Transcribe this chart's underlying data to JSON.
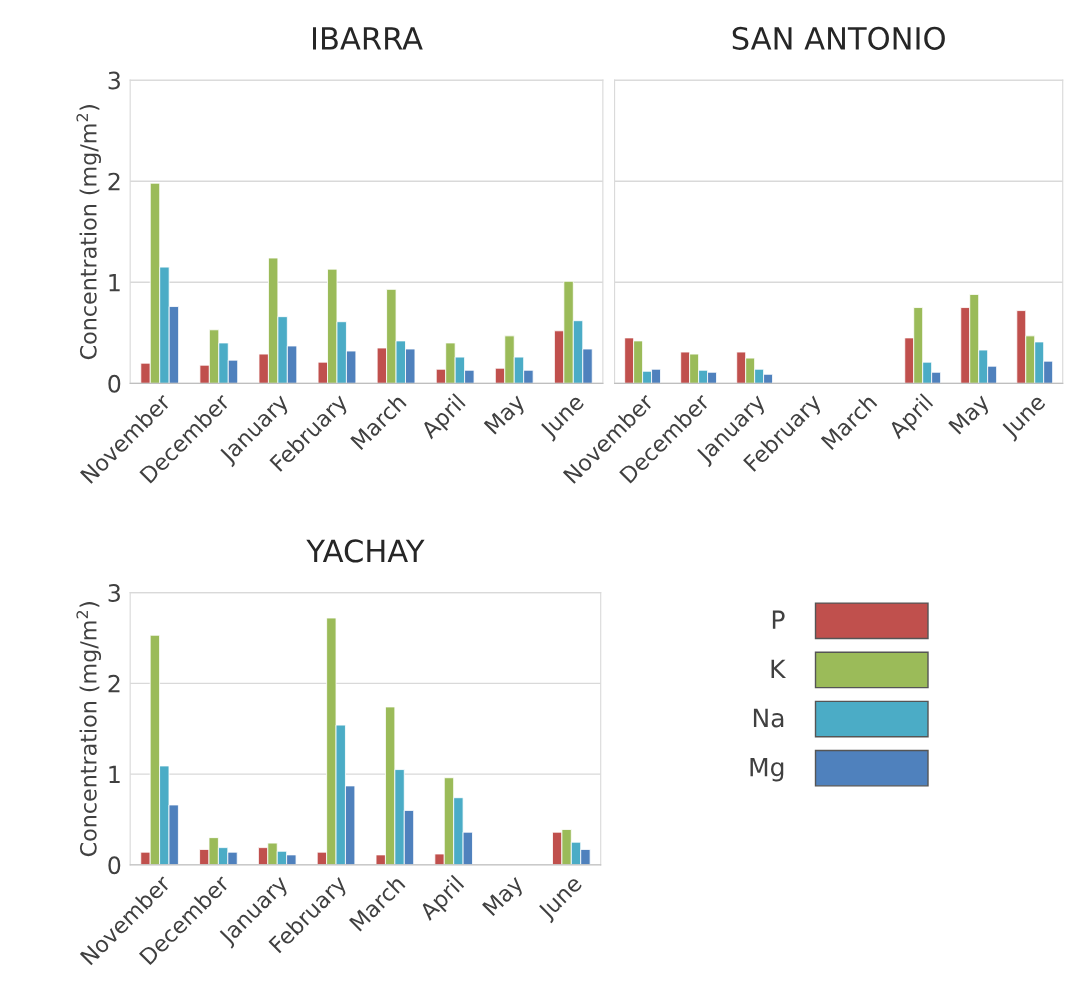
{
  "chart_data": [
    {
      "type": "bar",
      "title": "IBARRA",
      "ylabel": "Concentration (mg/m$^{2}$)",
      "categories": [
        "November",
        "December",
        "January",
        "February",
        "March",
        "April",
        "May",
        "June"
      ],
      "ylim": [
        0,
        3
      ],
      "yticks": [
        0,
        1,
        2,
        3
      ],
      "grid": "y",
      "legend": "bottom right",
      "series": [
        {
          "name": "P",
          "color": "#c0504d",
          "values": [
            0.2,
            0.18,
            0.29,
            0.21,
            0.35,
            0.14,
            0.15,
            0.52
          ]
        },
        {
          "name": "K",
          "color": "#9bbb59",
          "values": [
            1.98,
            0.53,
            1.24,
            1.13,
            0.93,
            0.4,
            0.47,
            1.01
          ]
        },
        {
          "name": "Na",
          "color": "#4bacc6",
          "values": [
            1.15,
            0.4,
            0.66,
            0.61,
            0.42,
            0.26,
            0.26,
            0.62
          ]
        },
        {
          "name": "Mg",
          "color": "#4f81bd",
          "values": [
            0.76,
            0.23,
            0.37,
            0.32,
            0.34,
            0.13,
            0.13,
            0.34
          ]
        }
      ]
    },
    {
      "type": "bar",
      "title": "SAN ANTONIO",
      "categories": [
        "November",
        "December",
        "January",
        "February",
        "March",
        "April",
        "May",
        "June"
      ],
      "ylim": [
        0,
        3
      ],
      "yticks": [
        0,
        1,
        2,
        3
      ],
      "tick_labels": "x",
      "grid": "y",
      "legend": false,
      "series": [
        {
          "color": "#c0504d",
          "values": [
            0.45,
            0.31,
            0.31,
            null,
            null,
            0.45,
            0.75,
            0.72
          ]
        },
        {
          "color": "#9bbb59",
          "values": [
            0.42,
            0.29,
            0.25,
            null,
            null,
            0.75,
            0.88,
            0.47
          ]
        },
        {
          "color": "#4bacc6",
          "values": [
            0.12,
            0.13,
            0.14,
            null,
            null,
            0.21,
            0.33,
            0.41
          ]
        },
        {
          "color": "#4f81bd",
          "values": [
            0.14,
            0.11,
            0.09,
            null,
            null,
            0.11,
            0.17,
            0.22
          ]
        }
      ]
    },
    {
      "type": "bar",
      "title": "YACHAY",
      "ylabel": "Concentration (mg/m$^{2}$)",
      "categories": [
        "November",
        "December",
        "January",
        "February",
        "March",
        "April",
        "May",
        "June"
      ],
      "ylim": [
        0,
        3
      ],
      "yticks": [
        0,
        1,
        2,
        3
      ],
      "grid": "y",
      "series": [
        {
          "color": "#c0504d",
          "values": [
            0.14,
            0.17,
            0.19,
            0.14,
            0.11,
            0.12,
            null,
            0.36
          ]
        },
        {
          "color": "#9bbb59",
          "values": [
            2.53,
            0.3,
            0.24,
            2.72,
            1.74,
            0.96,
            null,
            0.39
          ]
        },
        {
          "color": "#4bacc6",
          "values": [
            1.09,
            0.19,
            0.15,
            1.54,
            1.05,
            0.74,
            null,
            0.25
          ]
        },
        {
          "color": "#4f81bd",
          "values": [
            0.66,
            0.14,
            0.11,
            0.87,
            0.6,
            0.36,
            null,
            0.17
          ]
        }
      ]
    }
  ]
}
